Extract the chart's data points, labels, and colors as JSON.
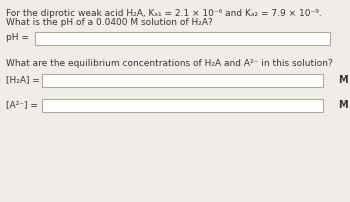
{
  "bg_color": "#f0ede8",
  "text_color": "#3a3530",
  "box_color": "#ffffff",
  "box_edge_color": "#b0a898",
  "line1": "For the diprotic weak acid H₂A, Kₐ₁ = 2.1 × 10⁻⁶ and Kₐ₂ = 7.9 × 10⁻⁹.",
  "line2": "What is the pH of a 0.0400 M solution of H₂A?",
  "label_ph": "pH =",
  "line3": "What are the equilibrium concentrations of H₂A and A²⁻ in this solution?",
  "label_h2a": "[H₂A] =",
  "label_a2": "[A²⁻] =",
  "unit": "M",
  "font_size_small": 6.5
}
